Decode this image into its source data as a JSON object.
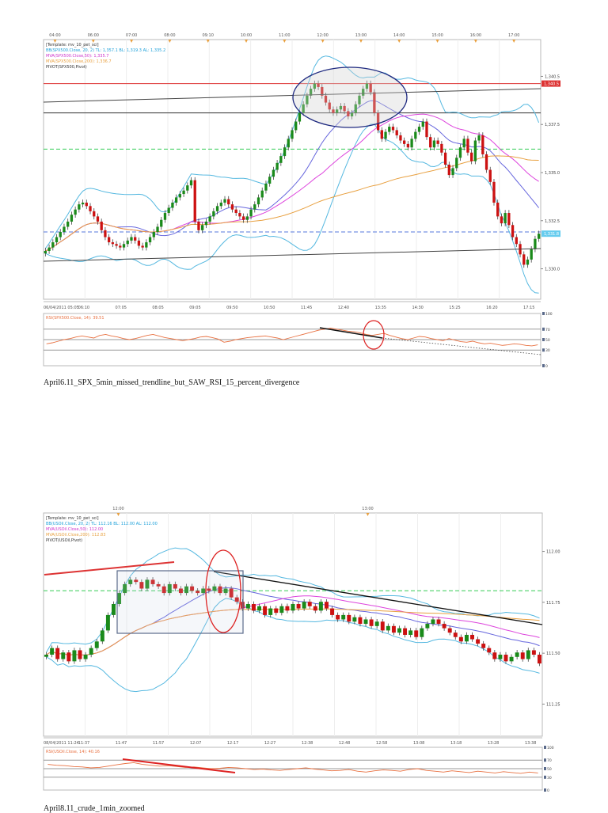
{
  "chart_data": [
    {
      "type": "candlestick",
      "caption": "April6.11_SPX_5min_missed_trendline_but_SAW_RSI_15_percent_divergence",
      "top_time_ticks": [
        "04:00",
        "06:00",
        "07:00",
        "08:00",
        "09:10",
        "10:00",
        "11:00",
        "12:00",
        "13:00",
        "14:00",
        "15:00",
        "16:00",
        "17:00"
      ],
      "bottom_time_ticks": [
        "06/04/2011 05:05",
        "06:10",
        "07:05",
        "08:05",
        "09:05",
        "09:50",
        "10:50",
        "11:45",
        "12:40",
        "13:35",
        "14:30",
        "15:25",
        "16:20",
        "17:15"
      ],
      "legend": [
        {
          "text": "[Template: mv_10_pet_sci]",
          "color": "#333333"
        },
        {
          "text": "BB(SPX500.Close, 20, 2)   TL: 1,357.1  BL: 1,319.3  AL: 1,335.2",
          "color": "#1a9fd9"
        },
        {
          "text": "MVA(SPX500.Close,50): 1,335.7",
          "color": "#cc33cc"
        },
        {
          "text": "MVA(SPX500.Close,200): 1,336.7",
          "color": "#e8a040"
        },
        {
          "text": "PIVOT(SPX500,Pivot)",
          "color": "#333333"
        }
      ],
      "price_axis": {
        "labels": [
          "1,340.5",
          "1,337.5",
          "1,335.0",
          "1,332.5",
          "1,330.0"
        ]
      },
      "price_markers": [
        {
          "text": "1,340.5",
          "color": "#dd3333"
        },
        {
          "text": "1,331.8",
          "color": "#66ccee"
        }
      ],
      "price_range": [
        1328.0,
        1342.5
      ],
      "closes": [
        1330.8,
        1331.0,
        1331.3,
        1331.6,
        1331.9,
        1332.2,
        1332.5,
        1332.9,
        1333.2,
        1333.5,
        1333.6,
        1333.4,
        1333.1,
        1332.8,
        1332.5,
        1332.0,
        1331.6,
        1331.3,
        1331.2,
        1331.1,
        1331.0,
        1331.2,
        1331.4,
        1331.6,
        1331.4,
        1331.1,
        1331.0,
        1331.3,
        1331.6,
        1331.9,
        1332.2,
        1332.6,
        1333.0,
        1333.3,
        1333.6,
        1333.9,
        1334.1,
        1334.3,
        1334.6,
        1334.9,
        1332.5,
        1332.0,
        1332.3,
        1332.5,
        1332.8,
        1333.1,
        1333.4,
        1333.6,
        1333.8,
        1333.5,
        1333.2,
        1333.0,
        1332.8,
        1332.6,
        1332.8,
        1333.2,
        1333.5,
        1333.9,
        1334.3,
        1334.7,
        1335.1,
        1335.5,
        1335.9,
        1336.3,
        1336.8,
        1337.3,
        1337.8,
        1338.3,
        1338.8,
        1339.3,
        1339.8,
        1340.2,
        1340.5,
        1340.3,
        1339.8,
        1339.4,
        1339.0,
        1338.8,
        1339.0,
        1339.2,
        1338.9,
        1338.6,
        1338.8,
        1339.3,
        1339.8,
        1340.2,
        1340.5,
        1340.0,
        1338.8,
        1337.8,
        1337.3,
        1337.7,
        1338.0,
        1337.8,
        1337.5,
        1337.2,
        1337.0,
        1336.8,
        1337.3,
        1337.7,
        1338.0,
        1338.3,
        1337.4,
        1336.8,
        1337.2,
        1337.0,
        1336.5,
        1335.8,
        1335.2,
        1335.6,
        1336.2,
        1336.8,
        1337.3,
        1336.5,
        1336.0,
        1337.2,
        1337.5,
        1336.4,
        1335.5,
        1334.8,
        1333.6,
        1332.8,
        1332.4,
        1333.0,
        1332.3,
        1331.6,
        1331.2,
        1330.6,
        1330.0,
        1330.3,
        1330.9,
        1331.5,
        1331.8
      ],
      "pivot_lines": [
        1340.5,
        1338.8,
        1336.7,
        1331.9
      ],
      "rsi": {
        "legend": "RSI(SPX500.Close, 14): 39.51",
        "date_label": "06/04/2011",
        "axis_labels": [
          "100",
          "70",
          "50",
          "30",
          "0"
        ],
        "values": [
          42,
          44,
          47,
          50,
          52,
          55,
          57,
          55,
          53,
          58,
          60,
          57,
          55,
          52,
          50,
          52,
          55,
          58,
          60,
          57,
          54,
          52,
          50,
          48,
          50,
          52,
          55,
          56,
          54,
          51,
          45,
          47,
          50,
          52,
          54,
          55,
          56,
          57,
          55,
          53,
          50,
          53,
          56,
          59,
          62,
          65,
          68,
          70,
          72,
          70,
          68,
          66,
          65,
          63,
          60,
          58,
          60,
          62,
          58,
          55,
          52,
          50,
          53,
          56,
          55,
          52,
          50,
          48,
          52,
          49,
          46,
          45,
          47,
          44,
          42,
          43,
          41,
          39,
          40,
          42,
          41,
          39,
          38,
          40
        ]
      }
    },
    {
      "type": "candlestick",
      "caption": "April8.11_crude_1min_zoomed",
      "top_time_ticks": [
        "12:00",
        "13:00"
      ],
      "bottom_time_ticks": [
        "08/04/2011 11:24",
        "11:37",
        "11:47",
        "11:57",
        "12:07",
        "12:17",
        "12:27",
        "12:38",
        "12:48",
        "12:58",
        "13:08",
        "13:18",
        "13:28",
        "13:38"
      ],
      "legend": [
        {
          "text": "[Template: mv_10_pet_sci]",
          "color": "#333333"
        },
        {
          "text": "BB(USOil.Close, 20, 2)   TL: 112.16  BL: 112.00  AL: 112.00",
          "color": "#1a9fd9"
        },
        {
          "text": "MVA(USOil.Close,50): 112.00",
          "color": "#cc33cc"
        },
        {
          "text": "MVA(USOil.Close,200): 112.83",
          "color": "#e8a040"
        },
        {
          "text": "PIVOT(USOil,Pivot)",
          "color": "#333333"
        }
      ],
      "price_axis": {
        "labels": [
          "112.00",
          "111.75",
          "111.50",
          "111.25"
        ]
      },
      "price_range": [
        111.15,
        112.12
      ],
      "closes": [
        111.52,
        111.55,
        111.5,
        111.53,
        111.49,
        111.54,
        111.5,
        111.52,
        111.55,
        111.58,
        111.63,
        111.7,
        111.75,
        111.8,
        111.84,
        111.86,
        111.85,
        111.82,
        111.86,
        111.84,
        111.83,
        111.8,
        111.84,
        111.82,
        111.8,
        111.83,
        111.81,
        111.8,
        111.82,
        111.81,
        111.83,
        111.8,
        111.82,
        111.78,
        111.76,
        111.73,
        111.75,
        111.72,
        111.74,
        111.7,
        111.73,
        111.71,
        111.74,
        111.72,
        111.75,
        111.73,
        111.76,
        111.74,
        111.72,
        111.76,
        111.73,
        111.7,
        111.68,
        111.7,
        111.67,
        111.69,
        111.66,
        111.68,
        111.65,
        111.67,
        111.63,
        111.65,
        111.62,
        111.64,
        111.61,
        111.63,
        111.6,
        111.64,
        111.66,
        111.68,
        111.66,
        111.64,
        111.62,
        111.6,
        111.58,
        111.61,
        111.59,
        111.57,
        111.55,
        111.53,
        111.5,
        111.52,
        111.49,
        111.51,
        111.53,
        111.5,
        111.54,
        111.52,
        111.48
      ],
      "pivot_lines": [
        111.81
      ],
      "rsi": {
        "legend": "RSI(USOil.Close, 14): 40.16",
        "date_label": "08/04/2011",
        "axis_labels": [
          "100",
          "70",
          "50",
          "30",
          "0"
        ],
        "values": [
          60,
          58,
          57,
          55,
          54,
          52,
          53,
          56,
          59,
          62,
          64,
          60,
          58,
          56,
          57,
          55,
          53,
          54,
          52,
          50,
          51,
          53,
          52,
          50,
          48,
          49,
          47,
          46,
          48,
          50,
          52,
          49,
          47,
          45,
          46,
          48,
          44,
          42,
          45,
          47,
          46,
          44,
          48,
          50,
          46,
          44,
          42,
          45,
          43,
          41,
          44,
          42,
          40,
          43,
          41,
          39,
          42,
          40
        ]
      }
    }
  ]
}
